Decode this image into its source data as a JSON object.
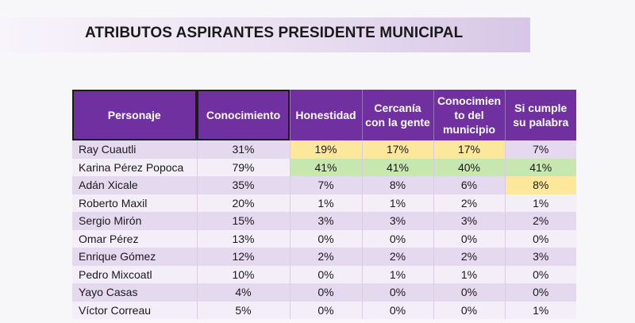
{
  "title": "ATRIBUTOS ASPIRANTES PRESIDENTE MUNICIPAL",
  "table": {
    "headers": [
      "Personaje",
      "Conocimiento",
      "Honestidad",
      "Cercanía con la gente",
      "Conocimiento del municipio",
      "Si cumple su palabra"
    ],
    "header_lines": [
      [
        "Personaje"
      ],
      [
        "Conocimiento"
      ],
      [
        "Honestidad"
      ],
      [
        "Cercanía",
        "con la gente"
      ],
      [
        "Conocimien",
        "to del",
        "municipio"
      ],
      [
        "Si cumple",
        "su palabra"
      ]
    ],
    "rows": [
      [
        "Ray Cuautli",
        "31%",
        "19%",
        "17%",
        "17%",
        "7%"
      ],
      [
        "Karina Pérez Popoca",
        "79%",
        "41%",
        "41%",
        "40%",
        "41%"
      ],
      [
        "Adán Xicale",
        "35%",
        "7%",
        "8%",
        "6%",
        "8%"
      ],
      [
        "Roberto Maxil",
        "20%",
        "1%",
        "1%",
        "2%",
        "1%"
      ],
      [
        "Sergio Mirón",
        "15%",
        "3%",
        "3%",
        "3%",
        "2%"
      ],
      [
        "Omar Pérez",
        "13%",
        "0%",
        "0%",
        "0%",
        "0%"
      ],
      [
        "Enrique Gómez",
        "12%",
        "2%",
        "2%",
        "2%",
        "3%"
      ],
      [
        "Pedro Mixcoatl",
        "10%",
        "0%",
        "1%",
        "1%",
        "0%"
      ],
      [
        "Yayo Casas",
        "4%",
        "0%",
        "0%",
        "0%",
        "0%"
      ],
      [
        "Víctor Correau",
        "5%",
        "0%",
        "0%",
        "0%",
        "1%"
      ]
    ],
    "highlights": {
      "yellow": [
        [
          0,
          2
        ],
        [
          0,
          3
        ],
        [
          0,
          4
        ],
        [
          2,
          5
        ]
      ],
      "green": [
        [
          1,
          2
        ],
        [
          1,
          3
        ],
        [
          1,
          4
        ],
        [
          1,
          5
        ]
      ]
    },
    "colors": {
      "header_bg": "#7030a0",
      "row_odd": "#e4d9ef",
      "row_even": "#f3eef8",
      "highlight_yellow": "#fde79a",
      "highlight_green": "#c8e6b0"
    }
  }
}
